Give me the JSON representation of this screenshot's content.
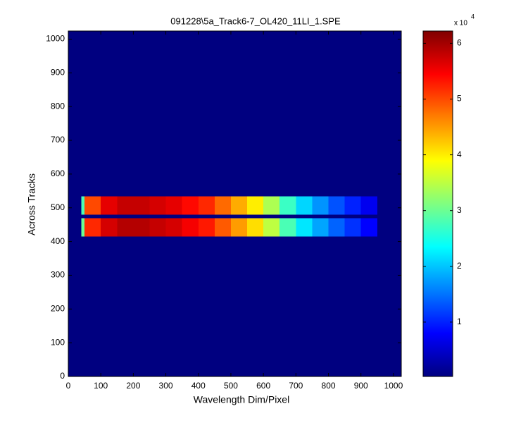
{
  "chart_data": {
    "type": "heatmap",
    "title": "091228\\5a_Track6-7_OL420_11LI_1.SPE",
    "xlabel": "Wavelength Dim/Pixel",
    "ylabel": "Across Tracks",
    "xlim": [
      0,
      1024
    ],
    "ylim": [
      0,
      1024
    ],
    "xticks": [
      0,
      100,
      200,
      300,
      400,
      500,
      600,
      700,
      800,
      900,
      1000
    ],
    "yticks": [
      0,
      100,
      200,
      300,
      400,
      500,
      600,
      700,
      800,
      900,
      1000
    ],
    "xbins": [
      0,
      40,
      50,
      100,
      150,
      200,
      250,
      300,
      350,
      400,
      450,
      500,
      550,
      600,
      650,
      700,
      750,
      800,
      850,
      900,
      950,
      1024
    ],
    "ybins": [
      0,
      415,
      470,
      480,
      535,
      1024
    ],
    "values": [
      [
        250,
        250,
        250,
        250,
        250,
        250,
        250,
        250,
        250,
        250,
        250,
        250,
        250,
        250,
        250,
        250,
        250,
        250,
        250,
        250,
        250
      ],
      [
        250,
        30000,
        52000,
        57000,
        59000,
        59000,
        58000,
        57000,
        55000,
        53000,
        49000,
        45000,
        41000,
        35000,
        28000,
        22000,
        18000,
        14000,
        11000,
        8000,
        250
      ],
      [
        250,
        250,
        250,
        250,
        250,
        250,
        250,
        250,
        250,
        250,
        250,
        250,
        250,
        250,
        250,
        250,
        250,
        250,
        250,
        250,
        250
      ],
      [
        250,
        28000,
        50000,
        56000,
        58000,
        58000,
        57000,
        56000,
        54000,
        52000,
        48000,
        44000,
        40000,
        34000,
        27000,
        21000,
        17000,
        13000,
        10000,
        7000,
        250
      ],
      [
        250,
        250,
        250,
        250,
        250,
        250,
        250,
        250,
        250,
        250,
        250,
        250,
        250,
        250,
        250,
        250,
        250,
        250,
        250,
        250,
        250
      ]
    ],
    "colormap": "jet",
    "clim": [
      250,
      62200
    ],
    "cticks": [
      {
        "value": 10000,
        "label": "1"
      },
      {
        "value": 20000,
        "label": "2"
      },
      {
        "value": 30000,
        "label": "3"
      },
      {
        "value": 40000,
        "label": "4"
      },
      {
        "value": 50000,
        "label": "5"
      },
      {
        "value": 60000,
        "label": "6"
      }
    ],
    "colorbar_multiplier": "x 10",
    "colorbar_exponent": "4"
  }
}
